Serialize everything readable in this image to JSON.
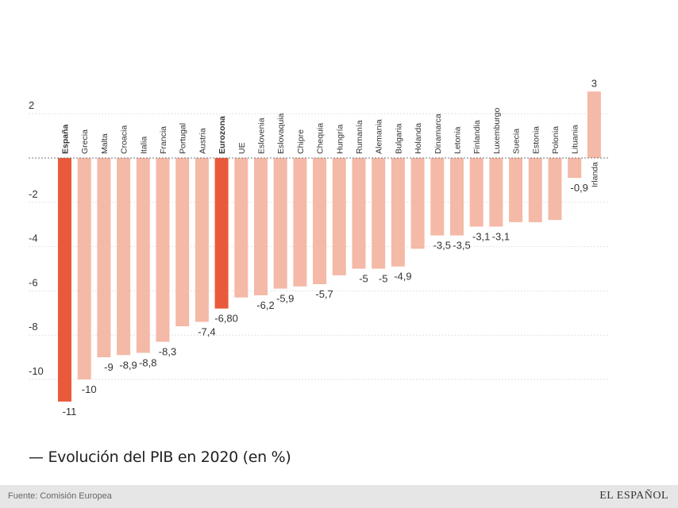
{
  "chart_data": {
    "type": "bar",
    "title": "Evolución del PIB en 2020 (en %)",
    "ylim": [
      -11.5,
      3.5
    ],
    "yticks": [
      2,
      -2,
      -4,
      -6,
      -8,
      -10
    ],
    "grid": true,
    "highlight_color": "#e95a3a",
    "bar_color": "#f4b9a7",
    "categories": [
      "España",
      "Grecia",
      "Malta",
      "Croacia",
      "Italia",
      "Francia",
      "Portugal",
      "Austria",
      "Eurozona",
      "UE",
      "Eslovenia",
      "Eslovaquia",
      "Chipre",
      "Chequia",
      "Hungría",
      "Rumanía",
      "Alemania",
      "Bulgaria",
      "Holanda",
      "Dinamarca",
      "Letonia",
      "Finlandia",
      "Luxemburgo",
      "Suecia",
      "Estonia",
      "Polonia",
      "Lituania",
      "Irlanda"
    ],
    "values": [
      -11,
      -10,
      -9,
      -8.9,
      -8.8,
      -8.3,
      -7.6,
      -7.4,
      -6.8,
      -6.3,
      -6.2,
      -5.9,
      -5.8,
      -5.7,
      -5.3,
      -5,
      -5,
      -4.9,
      -4.1,
      -3.5,
      -3.5,
      -3.1,
      -3.1,
      -2.9,
      -2.9,
      -2.8,
      -0.9,
      3
    ],
    "value_labels": [
      "-11",
      "-10",
      "-9",
      "-8,9",
      "-8,8",
      "-8,3",
      "",
      "-7,4",
      "-6,80",
      "",
      "-6,2",
      "-5,9",
      "",
      "-5,7",
      "",
      "-5",
      "-5",
      "-4,9",
      "",
      "-3,5",
      "-3,5",
      "-3,1",
      "-3,1",
      "",
      "",
      "",
      "-0,9",
      "3"
    ],
    "highlighted": [
      "España",
      "Eurozona"
    ]
  },
  "footer": {
    "source": "Fuente: Comisión Europea",
    "logo": "EL ESPAÑOL"
  }
}
